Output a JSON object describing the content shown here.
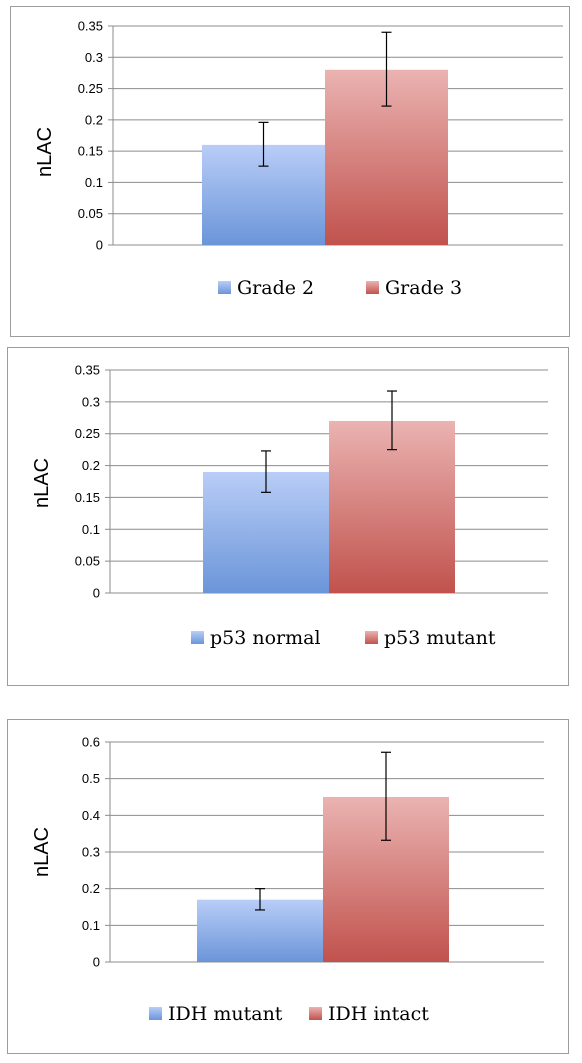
{
  "colors": {
    "blue_top": "#b9cdf7",
    "blue_bottom": "#6b95d9",
    "red_top": "#eab3b1",
    "red_bottom": "#c1524d",
    "grid": "#8c8c8c"
  },
  "chart_data": [
    {
      "type": "bar",
      "ylabel": "nLAC",
      "ylim": [
        0,
        0.35
      ],
      "yticks": [
        "0",
        "0.05",
        "0.1",
        "0.15",
        "0.2",
        "0.25",
        "0.3",
        "0.35"
      ],
      "grid": true,
      "legend_position": "bottom",
      "series": [
        {
          "name": "Grade 2",
          "value": 0.16,
          "error_low": 0.126,
          "error_high": 0.196,
          "color": "blue"
        },
        {
          "name": "Grade 3",
          "value": 0.28,
          "error_low": 0.222,
          "error_high": 0.34,
          "color": "red"
        }
      ]
    },
    {
      "type": "bar",
      "ylabel": "nLAC",
      "ylim": [
        0,
        0.35
      ],
      "yticks": [
        "0",
        "0.05",
        "0.1",
        "0.15",
        "0.2",
        "0.25",
        "0.3",
        "0.35"
      ],
      "grid": true,
      "legend_position": "bottom",
      "series": [
        {
          "name": "p53 normal",
          "value": 0.19,
          "error_low": 0.158,
          "error_high": 0.223,
          "color": "blue"
        },
        {
          "name": "p53 mutant",
          "value": 0.27,
          "error_low": 0.225,
          "error_high": 0.317,
          "color": "red"
        }
      ]
    },
    {
      "type": "bar",
      "ylabel": "nLAC",
      "ylim": [
        0,
        0.6
      ],
      "yticks": [
        "0",
        "0.1",
        "0.2",
        "0.3",
        "0.4",
        "0.5",
        "0.6"
      ],
      "grid": true,
      "legend_position": "bottom",
      "series": [
        {
          "name": "IDH mutant",
          "value": 0.17,
          "error_low": 0.142,
          "error_high": 0.2,
          "color": "blue"
        },
        {
          "name": "IDH intact",
          "value": 0.45,
          "error_low": 0.332,
          "error_high": 0.572,
          "color": "red"
        }
      ]
    }
  ]
}
